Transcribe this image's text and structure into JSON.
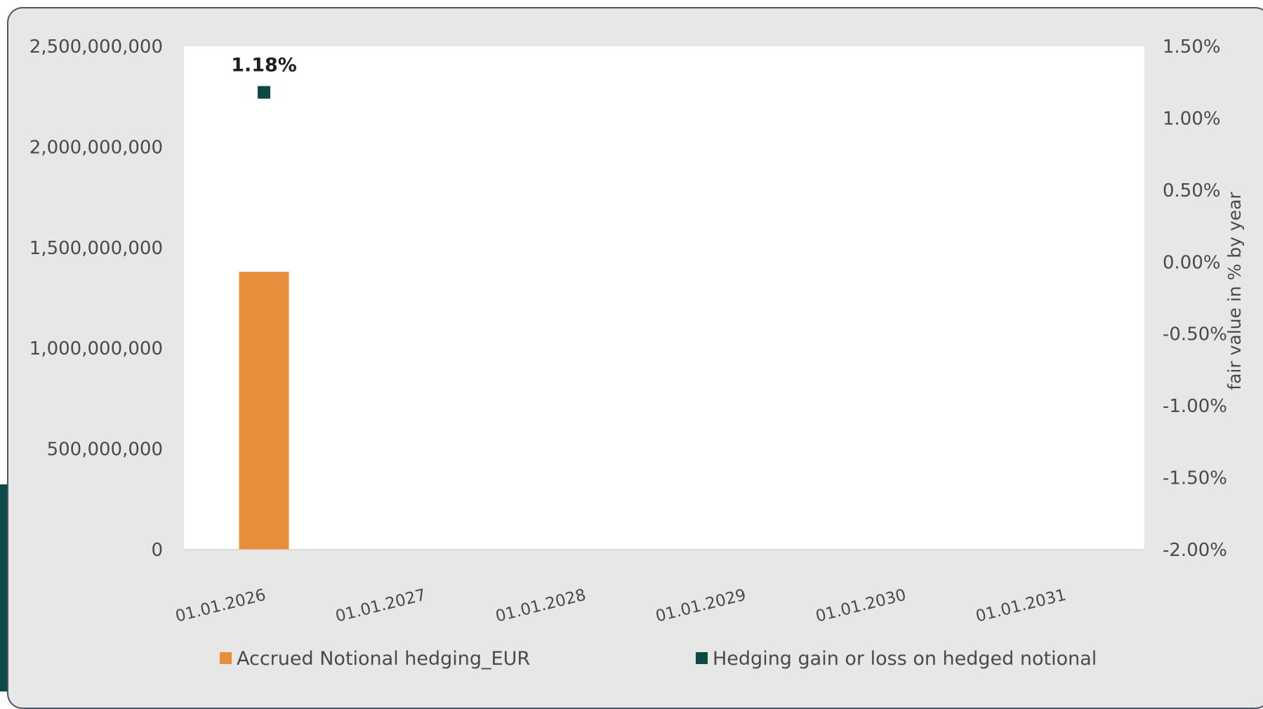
{
  "chart_data": {
    "type": "bar",
    "categories": [
      "01.01.2026",
      "01.01.2027",
      "01.01.2028",
      "01.01.2029",
      "01.01.2030",
      "01.01.2031"
    ],
    "series": [
      {
        "name": "Accrued Notional hedging_EUR",
        "type": "bar",
        "axis": "left",
        "color": "#e88f3c",
        "values": [
          1380000000,
          null,
          null,
          null,
          null,
          null
        ]
      },
      {
        "name": "Hedging gain or loss on hedged notional",
        "type": "scatter",
        "axis": "right",
        "color": "#0e4a44",
        "values": [
          1.18,
          null,
          null,
          null,
          null,
          null
        ],
        "data_labels": [
          "1.18%",
          "",
          "",
          "",
          "",
          ""
        ]
      }
    ],
    "y_left": {
      "ylim": [
        0,
        2500000000
      ],
      "ticks": [
        0,
        500000000,
        1000000000,
        1500000000,
        2000000000,
        2500000000
      ],
      "tick_labels": [
        "0",
        "500,000,000",
        "1,000,000,000",
        "1,500,000,000",
        "2,000,000,000",
        "2,500,000,000"
      ]
    },
    "y_right": {
      "label": "fair value in % by year",
      "ylim": [
        -2.0,
        1.5
      ],
      "ticks": [
        -2.0,
        -1.5,
        -1.0,
        -0.5,
        0.0,
        0.5,
        1.0,
        1.5
      ],
      "tick_labels": [
        "-2.00%",
        "-1.50%",
        "-1.00%",
        "-0.50%",
        "0.00%",
        "0.50%",
        "1.00%",
        "1.50%"
      ]
    },
    "legend": "bottom",
    "grid": false
  }
}
